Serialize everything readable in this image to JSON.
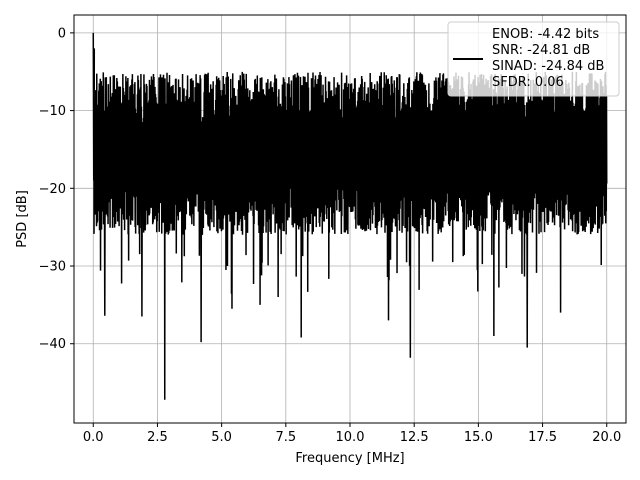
{
  "chart_data": {
    "type": "line",
    "title": "",
    "xlabel": "Frequency [MHz]",
    "ylabel": "PSD [dB]",
    "xlim": [
      -0.75,
      20.75
    ],
    "ylim": [
      -50.2,
      2.3
    ],
    "x_ticks": [
      0.0,
      2.5,
      5.0,
      7.5,
      10.0,
      12.5,
      15.0,
      17.5,
      20.0
    ],
    "x_tick_labels": [
      "0.0",
      "2.5",
      "5.0",
      "7.5",
      "10.0",
      "12.5",
      "15.0",
      "17.5",
      "20.0"
    ],
    "y_ticks": [
      0,
      -10,
      -20,
      -30,
      -40
    ],
    "y_tick_labels": [
      "0",
      "−10",
      "−20",
      "−30",
      "−40"
    ],
    "grid": true,
    "legend_position": "top-right",
    "legend_lines": [
      "ENOB: -4.42 bits",
      "SNR: -24.81 dB",
      "SINAD: -24.84 dB",
      "SFDR: 0.06"
    ],
    "series": [
      {
        "color": "#000000",
        "x_start": 0.0,
        "x_end": 20.0,
        "points": 2048,
        "peak": {
          "x": 0.0,
          "y": 0.0
        },
        "typical_top_db": -5,
        "typical_bottom_db": -26,
        "median_db": -16,
        "deep_notches": [
          {
            "x": 2.78,
            "y": -47.2
          },
          {
            "x": 12.35,
            "y": -41.8
          },
          {
            "x": 16.9,
            "y": -40.5
          },
          {
            "x": 4.2,
            "y": -39.8
          },
          {
            "x": 8.1,
            "y": -39.2
          },
          {
            "x": 15.6,
            "y": -39.0
          },
          {
            "x": 0.45,
            "y": -36.4
          },
          {
            "x": 11.5,
            "y": -37.0
          },
          {
            "x": 1.9,
            "y": -36.5
          },
          {
            "x": 18.2,
            "y": -36.0
          },
          {
            "x": 5.4,
            "y": -35.5
          },
          {
            "x": 6.5,
            "y": -35.0
          }
        ]
      }
    ]
  }
}
